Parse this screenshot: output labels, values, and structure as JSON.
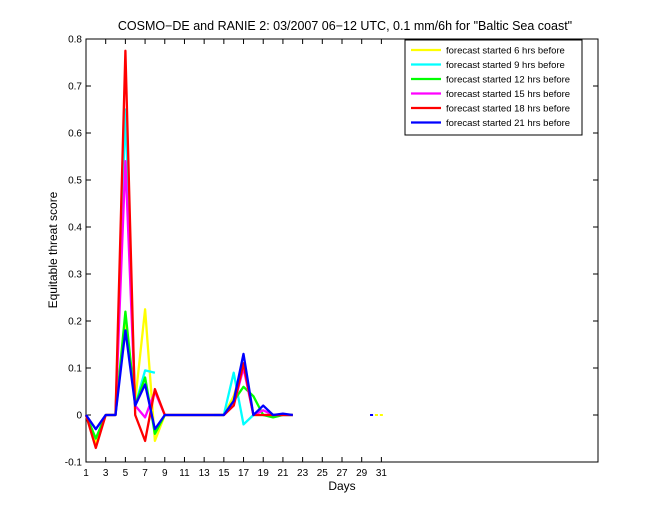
{
  "chart_data": {
    "type": "line",
    "title": "COSMO−DE and RANIE 2: 03/2007 06−12 UTC, 0.1 mm/6h for \"Baltic Sea coast\"",
    "xlabel": "Days",
    "ylabel": "Equitable threat score",
    "xlim": [
      1,
      53
    ],
    "ylim": [
      -0.1,
      0.8
    ],
    "xticks": [
      1,
      3,
      5,
      7,
      9,
      11,
      13,
      15,
      17,
      19,
      21,
      23,
      25,
      27,
      29,
      31
    ],
    "yticks": [
      -0.1,
      0,
      0.1,
      0.2,
      0.3,
      0.4,
      0.5,
      0.6,
      0.7,
      0.8
    ],
    "grid": false,
    "legend_position": "top-right",
    "series": [
      {
        "name": "forecast started 6 hrs before",
        "color": "#ffff00",
        "points": [
          [
            1,
            0
          ],
          [
            2,
            -0.06
          ],
          [
            3,
            0
          ],
          [
            4,
            0
          ],
          [
            5,
            0.2
          ],
          [
            6,
            0.03
          ],
          [
            7,
            0.225
          ],
          [
            8,
            -0.055
          ],
          [
            9,
            0
          ],
          [
            15,
            0
          ],
          [
            16,
            0.04
          ],
          [
            17,
            0.11
          ],
          [
            18,
            0
          ],
          [
            19,
            0
          ],
          [
            20,
            0
          ],
          [
            21,
            0
          ],
          [
            22,
            0
          ]
        ],
        "isolated": [
          [
            30.5,
            0
          ],
          [
            31,
            0
          ]
        ]
      },
      {
        "name": "forecast started 9 hrs before",
        "color": "#00ffff",
        "points": [
          [
            1,
            0
          ],
          [
            2,
            -0.03
          ],
          [
            3,
            0
          ],
          [
            4,
            0
          ],
          [
            5,
            0.65
          ],
          [
            6,
            0.02
          ],
          [
            7,
            0.095
          ],
          [
            8,
            0.09
          ]
        ],
        "points2": [
          [
            14,
            0
          ],
          [
            15,
            0
          ],
          [
            16,
            0.09
          ],
          [
            17,
            -0.02
          ],
          [
            18,
            0
          ],
          [
            19,
            0
          ],
          [
            20,
            0
          ],
          [
            21,
            0
          ],
          [
            22,
            0
          ]
        ]
      },
      {
        "name": "forecast started 12 hrs before",
        "color": "#00ff00",
        "points": [
          [
            1,
            0
          ],
          [
            2,
            -0.05
          ],
          [
            3,
            0
          ],
          [
            4,
            0
          ],
          [
            5,
            0.22
          ],
          [
            6,
            0.02
          ],
          [
            7,
            0.08
          ],
          [
            8,
            -0.04
          ],
          [
            9,
            0
          ],
          [
            14,
            0
          ],
          [
            15,
            0
          ],
          [
            16,
            0.03
          ],
          [
            17,
            0.06
          ],
          [
            18,
            0.04
          ],
          [
            19,
            0
          ],
          [
            20,
            -0.005
          ],
          [
            21,
            0
          ],
          [
            22,
            0
          ]
        ]
      },
      {
        "name": "forecast started 15 hrs before",
        "color": "#ff00ff",
        "points": [
          [
            1,
            0
          ],
          [
            2,
            -0.03
          ],
          [
            3,
            0
          ],
          [
            4,
            0
          ],
          [
            5,
            0.54
          ],
          [
            6,
            0.02
          ],
          [
            7,
            -0.005
          ],
          [
            8,
            0.05
          ],
          [
            9,
            0
          ],
          [
            14,
            0
          ],
          [
            15,
            0
          ],
          [
            16,
            0.02
          ],
          [
            17,
            0.1
          ],
          [
            18,
            0
          ],
          [
            19,
            0.01
          ],
          [
            20,
            0
          ],
          [
            21,
            0
          ],
          [
            22,
            0
          ]
        ],
        "isolated": [
          [
            11,
            0
          ]
        ]
      },
      {
        "name": "forecast started 18 hrs before",
        "color": "#ff0000",
        "points": [
          [
            1,
            0
          ],
          [
            2,
            -0.07
          ],
          [
            3,
            0
          ],
          [
            4,
            0
          ],
          [
            5,
            0.775
          ],
          [
            6,
            0
          ],
          [
            7,
            -0.055
          ],
          [
            8,
            0.055
          ],
          [
            9,
            0
          ],
          [
            14,
            0
          ],
          [
            15,
            0
          ],
          [
            16,
            0.02
          ],
          [
            17,
            0.11
          ],
          [
            18,
            0
          ],
          [
            19,
            0
          ],
          [
            20,
            0
          ],
          [
            21,
            0
          ],
          [
            22,
            0
          ]
        ]
      },
      {
        "name": "forecast started 21 hrs before",
        "color": "#0000ff",
        "points": [
          [
            1,
            0
          ],
          [
            2,
            -0.03
          ],
          [
            3,
            0
          ],
          [
            4,
            0
          ],
          [
            5,
            0.18
          ],
          [
            6,
            0.02
          ],
          [
            7,
            0.065
          ],
          [
            8,
            -0.03
          ],
          [
            9,
            0
          ],
          [
            15,
            0
          ],
          [
            16,
            0.03
          ],
          [
            17,
            0.13
          ],
          [
            18,
            0
          ],
          [
            19,
            0.02
          ],
          [
            20,
            0
          ],
          [
            21,
            0.003
          ],
          [
            22,
            0
          ]
        ],
        "isolated": [
          [
            30,
            0
          ]
        ]
      }
    ]
  }
}
